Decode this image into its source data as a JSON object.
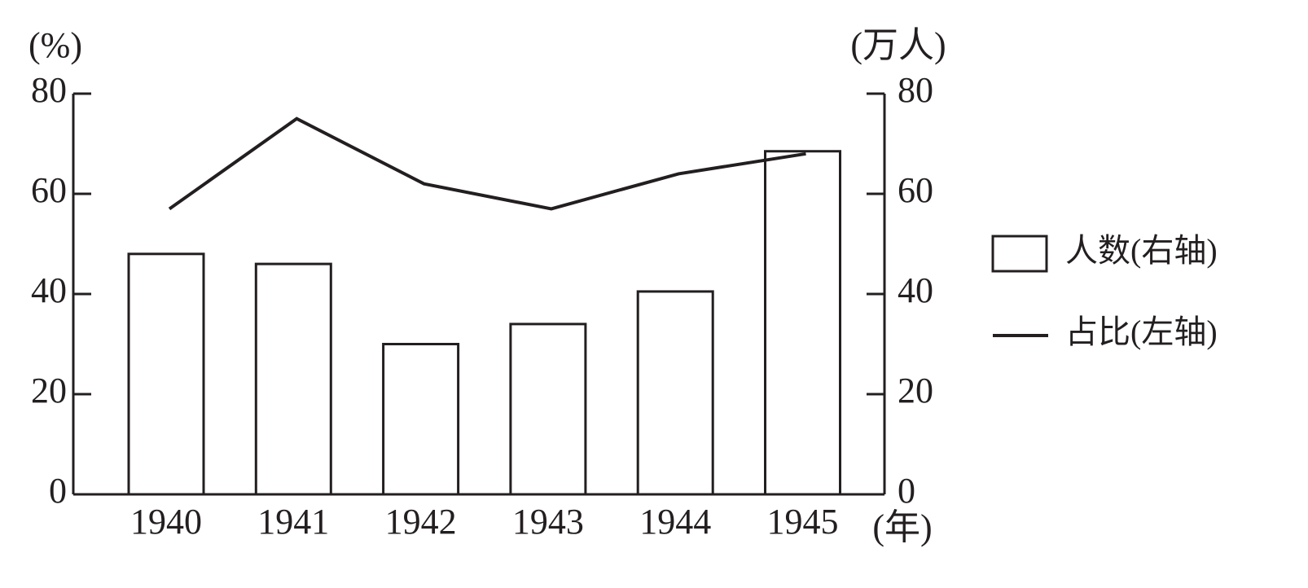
{
  "chart_data": {
    "type": "combo",
    "ylabel": "(%)",
    "y2label": "(万人)",
    "xlabel": "(年)",
    "categories": [
      "1940",
      "1941",
      "1942",
      "1943",
      "1944",
      "1945"
    ],
    "series": [
      {
        "name": "人数(右轴)",
        "type": "bar",
        "axis": "y2",
        "color": "#231f20",
        "values": [
          48,
          46,
          30,
          34,
          40.5,
          68.5
        ]
      },
      {
        "name": "占比(左轴)",
        "type": "line",
        "color": "#231f20",
        "values": [
          57,
          75,
          62,
          57,
          64,
          68
        ]
      }
    ],
    "ylim": [
      0,
      80
    ],
    "yticks": [
      0,
      20,
      40,
      60,
      80
    ],
    "y2lim": [
      0,
      80
    ],
    "y2ticks": [
      0,
      20,
      40,
      60,
      80
    ],
    "grid": false
  }
}
